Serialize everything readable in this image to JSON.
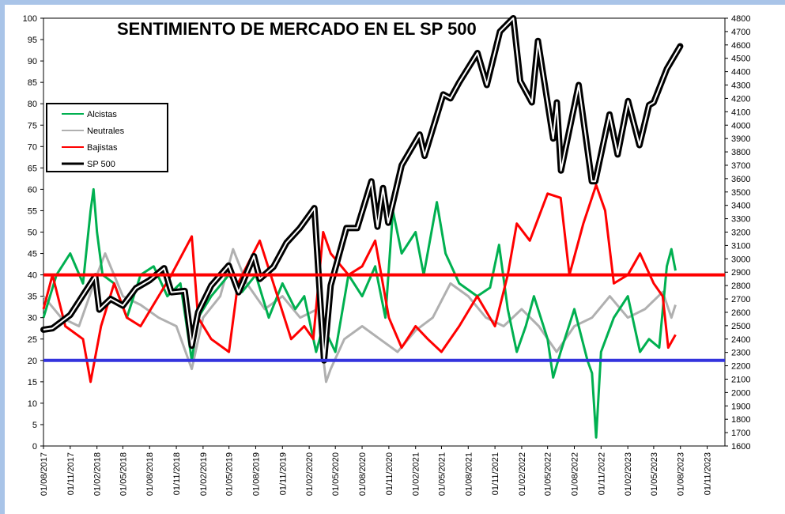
{
  "chart_data": {
    "type": "line",
    "title": "SENTIMIENTO DE MERCADO EN EL SP 500",
    "y_left": {
      "min": 0,
      "max": 100,
      "step": 5
    },
    "y_right": {
      "min": 1600,
      "max": 4800,
      "step": 100
    },
    "x_start": "2017-08-01",
    "x_end": "2024-01-01",
    "x_tick_labels": [
      "01/08/2017",
      "01/11/2017",
      "01/02/2018",
      "01/05/2018",
      "01/08/2018",
      "01/11/2018",
      "01/02/2019",
      "01/05/2019",
      "01/08/2019",
      "01/11/2019",
      "01/02/2020",
      "01/05/2020",
      "01/08/2020",
      "01/11/2020",
      "01/02/2021",
      "01/05/2021",
      "01/08/2021",
      "01/11/2021",
      "01/02/2022",
      "01/05/2022",
      "01/08/2022",
      "01/11/2022",
      "01/02/2023",
      "01/05/2023",
      "01/08/2023",
      "01/11/2023"
    ],
    "reference_lines": [
      {
        "value": 40,
        "color": "#ff0000"
      },
      {
        "value": 20,
        "color": "#3333dd"
      }
    ],
    "legend": {
      "position": "top-left"
    },
    "series": [
      {
        "name": "Alcistas",
        "color": "#00b050",
        "axis": "left",
        "points": [
          [
            "2017-08-01",
            30
          ],
          [
            "2017-09-15",
            40
          ],
          [
            "2017-11-01",
            45
          ],
          [
            "2017-12-15",
            38
          ],
          [
            "2018-01-10",
            55
          ],
          [
            "2018-01-20",
            60
          ],
          [
            "2018-02-01",
            50
          ],
          [
            "2018-02-20",
            40
          ],
          [
            "2018-04-01",
            38
          ],
          [
            "2018-05-15",
            30
          ],
          [
            "2018-07-01",
            40
          ],
          [
            "2018-08-15",
            42
          ],
          [
            "2018-10-01",
            35
          ],
          [
            "2018-11-15",
            38
          ],
          [
            "2018-12-24",
            20
          ],
          [
            "2019-01-15",
            30
          ],
          [
            "2019-03-01",
            35
          ],
          [
            "2019-05-01",
            40
          ],
          [
            "2019-06-15",
            36
          ],
          [
            "2019-08-01",
            40
          ],
          [
            "2019-09-15",
            30
          ],
          [
            "2019-11-01",
            38
          ],
          [
            "2019-12-15",
            32
          ],
          [
            "2020-01-15",
            35
          ],
          [
            "2020-02-25",
            22
          ],
          [
            "2020-03-20",
            28
          ],
          [
            "2020-05-01",
            22
          ],
          [
            "2020-06-15",
            40
          ],
          [
            "2020-08-01",
            35
          ],
          [
            "2020-09-15",
            42
          ],
          [
            "2020-10-20",
            30
          ],
          [
            "2020-11-15",
            55
          ],
          [
            "2020-12-15",
            45
          ],
          [
            "2021-02-01",
            50
          ],
          [
            "2021-03-01",
            40
          ],
          [
            "2021-04-15",
            57
          ],
          [
            "2021-05-15",
            45
          ],
          [
            "2021-07-01",
            38
          ],
          [
            "2021-09-01",
            35
          ],
          [
            "2021-10-15",
            37
          ],
          [
            "2021-11-15",
            47
          ],
          [
            "2021-12-15",
            32
          ],
          [
            "2022-01-15",
            22
          ],
          [
            "2022-02-15",
            28
          ],
          [
            "2022-03-15",
            35
          ],
          [
            "2022-05-01",
            25
          ],
          [
            "2022-05-20",
            16
          ],
          [
            "2022-06-15",
            22
          ],
          [
            "2022-08-01",
            32
          ],
          [
            "2022-09-15",
            20
          ],
          [
            "2022-10-01",
            17
          ],
          [
            "2022-10-15",
            2
          ],
          [
            "2022-11-01",
            22
          ],
          [
            "2022-12-15",
            30
          ],
          [
            "2023-02-01",
            35
          ],
          [
            "2023-03-15",
            22
          ],
          [
            "2023-04-15",
            25
          ],
          [
            "2023-05-20",
            23
          ],
          [
            "2023-06-15",
            42
          ],
          [
            "2023-07-01",
            46
          ],
          [
            "2023-07-15",
            41
          ]
        ]
      },
      {
        "name": "Neutrales",
        "color": "#b0b0b0",
        "axis": "left",
        "points": [
          [
            "2017-08-01",
            35
          ],
          [
            "2017-10-01",
            30
          ],
          [
            "2017-12-01",
            28
          ],
          [
            "2018-02-01",
            40
          ],
          [
            "2018-03-01",
            45
          ],
          [
            "2018-05-01",
            35
          ],
          [
            "2018-07-01",
            33
          ],
          [
            "2018-09-01",
            30
          ],
          [
            "2018-11-01",
            28
          ],
          [
            "2018-12-24",
            18
          ],
          [
            "2019-02-01",
            30
          ],
          [
            "2019-04-01",
            35
          ],
          [
            "2019-05-15",
            46
          ],
          [
            "2019-07-01",
            38
          ],
          [
            "2019-09-01",
            32
          ],
          [
            "2019-11-01",
            35
          ],
          [
            "2020-01-01",
            30
          ],
          [
            "2020-03-01",
            32
          ],
          [
            "2020-03-30",
            15
          ],
          [
            "2020-04-15",
            18
          ],
          [
            "2020-06-01",
            25
          ],
          [
            "2020-08-01",
            28
          ],
          [
            "2020-10-01",
            25
          ],
          [
            "2020-12-01",
            22
          ],
          [
            "2021-02-01",
            27
          ],
          [
            "2021-04-01",
            30
          ],
          [
            "2021-06-01",
            38
          ],
          [
            "2021-08-01",
            35
          ],
          [
            "2021-10-01",
            30
          ],
          [
            "2021-12-01",
            28
          ],
          [
            "2022-02-01",
            32
          ],
          [
            "2022-04-01",
            28
          ],
          [
            "2022-06-01",
            22
          ],
          [
            "2022-08-01",
            28
          ],
          [
            "2022-10-01",
            30
          ],
          [
            "2022-12-01",
            35
          ],
          [
            "2023-02-01",
            30
          ],
          [
            "2023-04-01",
            32
          ],
          [
            "2023-06-01",
            36
          ],
          [
            "2023-07-01",
            30
          ],
          [
            "2023-07-15",
            33
          ]
        ]
      },
      {
        "name": "Bajistas",
        "color": "#ff0000",
        "axis": "left",
        "points": [
          [
            "2017-08-01",
            32
          ],
          [
            "2017-09-01",
            40
          ],
          [
            "2017-10-15",
            28
          ],
          [
            "2017-12-15",
            25
          ],
          [
            "2018-01-10",
            15
          ],
          [
            "2018-02-15",
            28
          ],
          [
            "2018-04-01",
            38
          ],
          [
            "2018-05-15",
            30
          ],
          [
            "2018-07-01",
            28
          ],
          [
            "2018-09-01",
            35
          ],
          [
            "2018-10-15",
            40
          ],
          [
            "2018-12-24",
            49
          ],
          [
            "2019-01-15",
            30
          ],
          [
            "2019-03-01",
            25
          ],
          [
            "2019-05-01",
            22
          ],
          [
            "2019-06-01",
            38
          ],
          [
            "2019-08-15",
            48
          ],
          [
            "2019-10-01",
            38
          ],
          [
            "2019-12-01",
            25
          ],
          [
            "2020-01-15",
            28
          ],
          [
            "2020-02-15",
            25
          ],
          [
            "2020-03-20",
            50
          ],
          [
            "2020-04-15",
            45
          ],
          [
            "2020-06-15",
            40
          ],
          [
            "2020-08-01",
            42
          ],
          [
            "2020-09-15",
            48
          ],
          [
            "2020-11-01",
            30
          ],
          [
            "2020-12-15",
            23
          ],
          [
            "2021-02-01",
            28
          ],
          [
            "2021-03-15",
            25
          ],
          [
            "2021-05-01",
            22
          ],
          [
            "2021-07-01",
            28
          ],
          [
            "2021-09-01",
            35
          ],
          [
            "2021-11-01",
            28
          ],
          [
            "2021-12-15",
            40
          ],
          [
            "2022-01-15",
            52
          ],
          [
            "2022-03-01",
            48
          ],
          [
            "2022-05-01",
            59
          ],
          [
            "2022-06-15",
            58
          ],
          [
            "2022-07-15",
            40
          ],
          [
            "2022-09-01",
            52
          ],
          [
            "2022-10-15",
            61
          ],
          [
            "2022-11-15",
            55
          ],
          [
            "2022-12-15",
            38
          ],
          [
            "2023-02-01",
            40
          ],
          [
            "2023-03-15",
            45
          ],
          [
            "2023-05-01",
            38
          ],
          [
            "2023-06-01",
            35
          ],
          [
            "2023-06-20",
            23
          ],
          [
            "2023-07-15",
            26
          ]
        ]
      },
      {
        "name": "SP 500",
        "color": "#000000",
        "axis": "right",
        "points": [
          [
            "2017-08-01",
            2470
          ],
          [
            "2017-09-01",
            2480
          ],
          [
            "2017-11-01",
            2580
          ],
          [
            "2018-01-26",
            2870
          ],
          [
            "2018-02-09",
            2620
          ],
          [
            "2018-03-20",
            2700
          ],
          [
            "2018-05-01",
            2650
          ],
          [
            "2018-06-15",
            2780
          ],
          [
            "2018-08-01",
            2840
          ],
          [
            "2018-09-20",
            2930
          ],
          [
            "2018-10-15",
            2750
          ],
          [
            "2018-11-30",
            2760
          ],
          [
            "2018-12-24",
            2350
          ],
          [
            "2019-01-15",
            2600
          ],
          [
            "2019-03-01",
            2800
          ],
          [
            "2019-04-30",
            2950
          ],
          [
            "2019-06-03",
            2750
          ],
          [
            "2019-07-26",
            3020
          ],
          [
            "2019-08-15",
            2850
          ],
          [
            "2019-10-01",
            2940
          ],
          [
            "2019-11-15",
            3120
          ],
          [
            "2019-12-31",
            3230
          ],
          [
            "2020-02-19",
            3380
          ],
          [
            "2020-03-23",
            2240
          ],
          [
            "2020-04-15",
            2800
          ],
          [
            "2020-06-08",
            3230
          ],
          [
            "2020-07-15",
            3230
          ],
          [
            "2020-09-02",
            3580
          ],
          [
            "2020-09-23",
            3240
          ],
          [
            "2020-10-12",
            3530
          ],
          [
            "2020-10-30",
            3270
          ],
          [
            "2020-12-15",
            3700
          ],
          [
            "2021-02-15",
            3930
          ],
          [
            "2021-03-04",
            3770
          ],
          [
            "2021-05-07",
            4230
          ],
          [
            "2021-06-01",
            4200
          ],
          [
            "2021-07-01",
            4320
          ],
          [
            "2021-09-02",
            4540
          ],
          [
            "2021-10-04",
            4300
          ],
          [
            "2021-11-18",
            4700
          ],
          [
            "2021-12-29",
            4790
          ],
          [
            "2022-01-03",
            4800
          ],
          [
            "2022-01-27",
            4330
          ],
          [
            "2022-03-08",
            4170
          ],
          [
            "2022-03-29",
            4630
          ],
          [
            "2022-05-20",
            3900
          ],
          [
            "2022-06-02",
            4170
          ],
          [
            "2022-06-16",
            3660
          ],
          [
            "2022-08-16",
            4300
          ],
          [
            "2022-09-30",
            3580
          ],
          [
            "2022-10-12",
            3580
          ],
          [
            "2022-11-30",
            4080
          ],
          [
            "2022-12-28",
            3780
          ],
          [
            "2023-02-02",
            4180
          ],
          [
            "2023-03-13",
            3850
          ],
          [
            "2023-04-15",
            4150
          ],
          [
            "2023-05-01",
            4170
          ],
          [
            "2023-06-15",
            4420
          ],
          [
            "2023-07-31",
            4590
          ]
        ]
      }
    ]
  }
}
